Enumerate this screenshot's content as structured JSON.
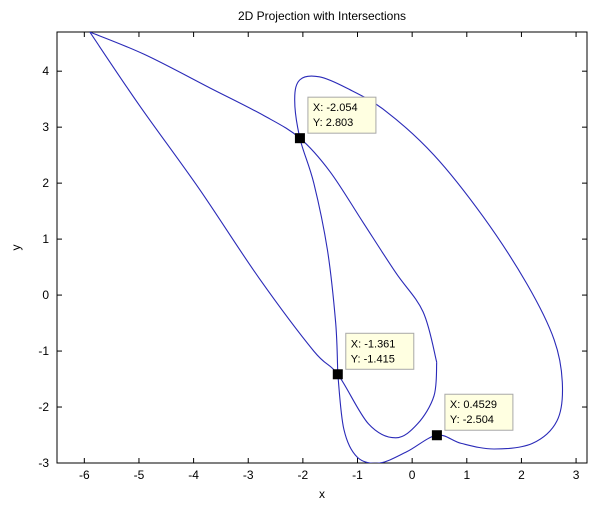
{
  "chart_data": {
    "type": "line",
    "title": "2D Projection with Intersections",
    "xlabel": "x",
    "ylabel": "y",
    "xlim": [
      -6.5,
      3.2
    ],
    "ylim": [
      -3.0,
      4.7
    ],
    "xticks": [
      -6,
      -5,
      -4,
      -3,
      -2,
      -1,
      0,
      1,
      2,
      3
    ],
    "yticks": [
      -3,
      -2,
      -1,
      0,
      1,
      2,
      3,
      4
    ],
    "grid": false,
    "colors": {
      "curve": "#2a2ab8",
      "marker": "#000000",
      "tip_bg": "#ffffe1",
      "tip_border": "#a8a8a8"
    },
    "curves": [
      {
        "x": [
          -5.9,
          -4.9,
          -3.7,
          -2.7,
          -2.054,
          -1.5,
          -0.9,
          -0.3,
          0.2,
          0.45
        ],
        "y": [
          4.7,
          4.3,
          3.7,
          3.2,
          2.803,
          2.2,
          1.3,
          0.4,
          -0.3,
          -1.2
        ]
      },
      {
        "x": [
          0.45,
          0.4,
          0.1,
          -0.3,
          -0.8,
          -1.361,
          -1.8,
          -2.8,
          -3.9,
          -5.0,
          -5.9
        ],
        "y": [
          -1.2,
          -1.8,
          -2.3,
          -2.55,
          -2.3,
          -1.415,
          -1.0,
          0.3,
          1.9,
          3.4,
          4.7
        ]
      },
      {
        "x": [
          -1.361,
          -1.4,
          -1.55,
          -1.8,
          -2.054,
          -2.15,
          -2.05,
          -1.7,
          -1.2,
          -0.5,
          0.4,
          1.3,
          2.1,
          2.6,
          2.75,
          2.65,
          2.2,
          1.5,
          0.9,
          0.4529,
          -0.1,
          -0.6,
          -1.0,
          -1.25,
          -1.361
        ],
        "y": [
          -1.415,
          -0.5,
          0.8,
          2.0,
          2.803,
          3.5,
          3.85,
          3.9,
          3.7,
          3.3,
          2.5,
          1.4,
          0.2,
          -0.8,
          -1.6,
          -2.25,
          -2.65,
          -2.75,
          -2.65,
          -2.504,
          -2.8,
          -3.0,
          -2.9,
          -2.4,
          -1.415
        ]
      }
    ],
    "annotations": [
      {
        "x": -2.054,
        "y": 2.803,
        "text_x": "X: -2.054",
        "text_y": "Y: 2.803"
      },
      {
        "x": -1.361,
        "y": -1.415,
        "text_x": "X: -1.361",
        "text_y": "Y: -1.415"
      },
      {
        "x": 0.4529,
        "y": -2.504,
        "text_x": "X: 0.4529",
        "text_y": "Y: -2.504"
      }
    ]
  }
}
